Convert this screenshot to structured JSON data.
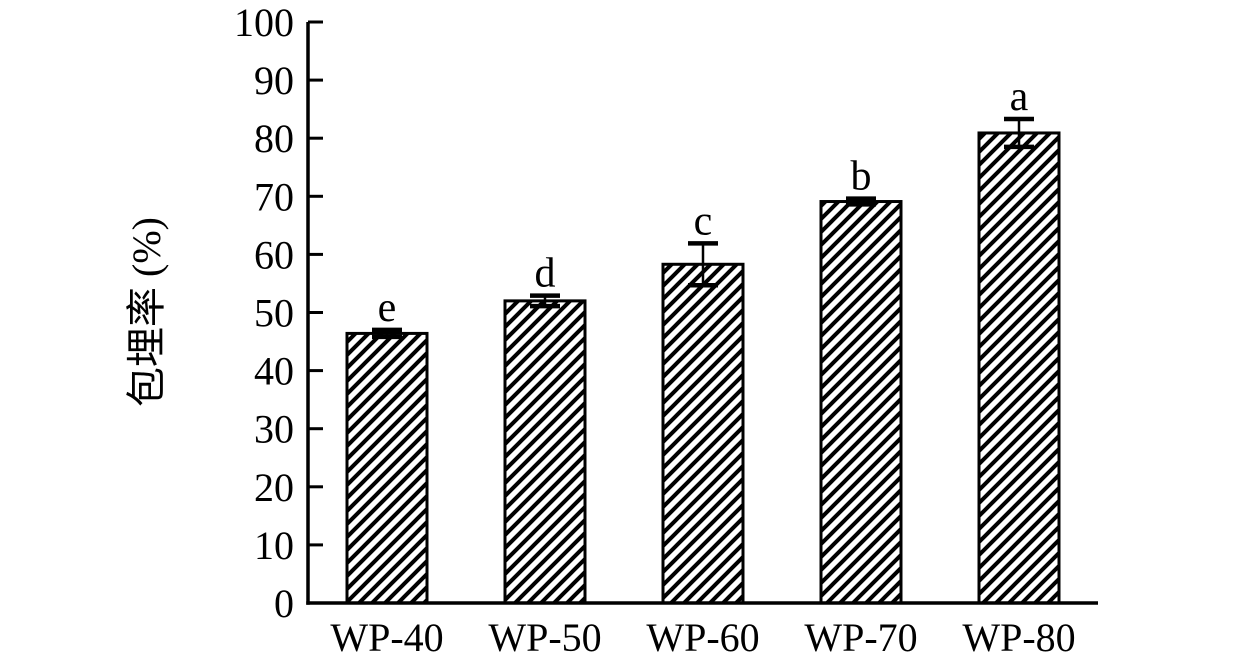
{
  "chart_data": {
    "type": "bar",
    "title": "",
    "xlabel": "",
    "ylabel": "包埋率 (%)",
    "categories": [
      "WP-40",
      "WP-50",
      "WP-60",
      "WP-70",
      "WP-80"
    ],
    "values": [
      46.4,
      52.0,
      58.3,
      69.1,
      80.9
    ],
    "errors": [
      0.6,
      0.9,
      3.6,
      0.5,
      2.4
    ],
    "sig_letters": [
      "e",
      "d",
      "c",
      "b",
      "a"
    ],
    "ylim": [
      0,
      100
    ],
    "ytick_step": 10,
    "yticks": [
      0,
      10,
      20,
      30,
      40,
      50,
      60,
      70,
      80,
      90,
      100
    ],
    "bar_fill": "diagonal-hatch",
    "hatch_direction": "forward-slash",
    "grid": "off",
    "legend": "none",
    "ink_color": "#000000",
    "background_color": "#ffffff"
  }
}
